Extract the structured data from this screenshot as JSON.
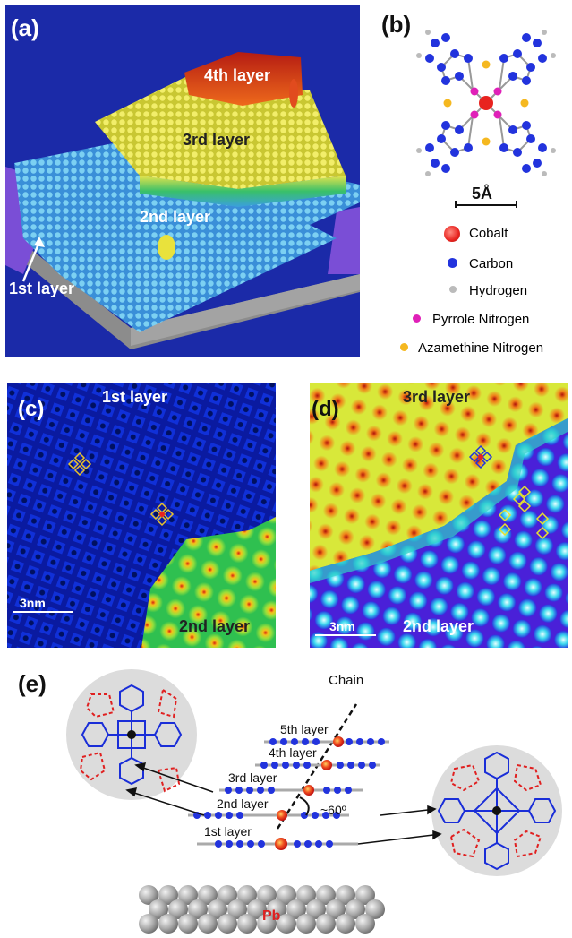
{
  "panel_a": {
    "tag": "(a)",
    "layer1": "1st layer",
    "layer2": "2nd layer",
    "layer3": "3rd layer",
    "layer4": "4th layer"
  },
  "panel_b": {
    "tag": "(b)",
    "scale": "5Å",
    "legend": [
      {
        "label": "Cobalt",
        "color": "#e8231f"
      },
      {
        "label": "Carbon",
        "color": "#2233dd"
      },
      {
        "label": "Hydrogen",
        "color": "#bbbbbb"
      },
      {
        "label": "Pyrrole Nitrogen",
        "color": "#e020b8"
      },
      {
        "label": "Azamethine Nitrogen",
        "color": "#f5b820"
      }
    ]
  },
  "panel_c": {
    "tag": "(c)",
    "top_label": "1st layer",
    "bottom_label": "2nd layer",
    "scale": "3nm"
  },
  "panel_d": {
    "tag": "(d)",
    "top_label": "3rd layer",
    "bottom_label": "2nd layer",
    "scale": "3nm"
  },
  "panel_e": {
    "tag": "(e)",
    "chain": "Chain",
    "layers": [
      "5th layer",
      "4th layer",
      "3rd layer",
      "2nd layer",
      "1st layer"
    ],
    "angle": "~60º",
    "substrate": "Pb"
  },
  "colors": {
    "cobalt": "#e8231f",
    "carbon": "#2233dd",
    "hydrogen": "#bbbbbb",
    "pyrrole_n": "#e020b8",
    "azamethine_n": "#f5b820"
  }
}
